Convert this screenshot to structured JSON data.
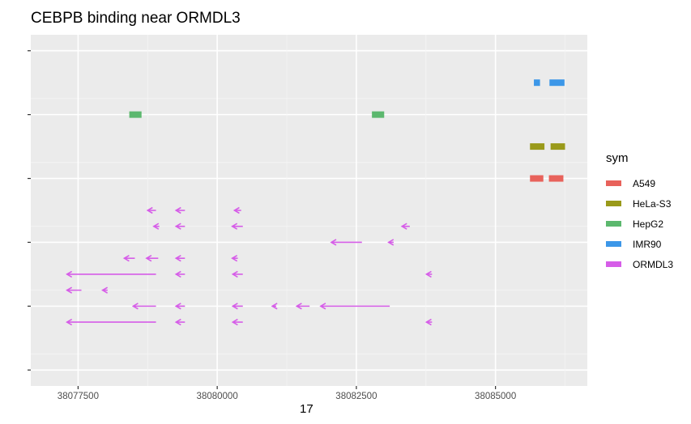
{
  "chart_data": {
    "type": "scatter",
    "title": "CEBPB binding near ORMDL3",
    "xlabel": "17",
    "ylabel": "",
    "x_ticks": [
      "38077500",
      "38080000",
      "38082500",
      "38085000"
    ],
    "x_tick_values": [
      38077500,
      38080000,
      38082500,
      38085000
    ],
    "xlim": [
      38076650,
      38086650
    ],
    "ylim": [
      0.5,
      11.5
    ],
    "grid": true,
    "legend_title": "sym",
    "legend_position": "right",
    "series": [
      {
        "name": "A549",
        "color": "#E8625B",
        "segments": [
          {
            "start": 38085620,
            "end": 38085860,
            "row": 7
          },
          {
            "start": 38085960,
            "end": 38086220,
            "row": 7
          }
        ]
      },
      {
        "name": "HeLa-S3",
        "color": "#9A9A1A",
        "segments": [
          {
            "start": 38085620,
            "end": 38085880,
            "row": 8
          },
          {
            "start": 38085990,
            "end": 38086250,
            "row": 8
          }
        ]
      },
      {
        "name": "HepG2",
        "color": "#5CB86E",
        "segments": [
          {
            "start": 38078420,
            "end": 38078640,
            "row": 9
          },
          {
            "start": 38082780,
            "end": 38083000,
            "row": 9
          }
        ]
      },
      {
        "name": "IMR90",
        "color": "#3C97E8",
        "segments": [
          {
            "start": 38085690,
            "end": 38085800,
            "row": 10
          },
          {
            "start": 38085970,
            "end": 38086240,
            "row": 10
          }
        ]
      },
      {
        "name": "ORMDL3",
        "color": "#D65DE8",
        "arrows": [
          {
            "start": 38078900,
            "end": 38078750,
            "row": 6
          },
          {
            "start": 38079420,
            "end": 38079260,
            "row": 6
          },
          {
            "start": 38080430,
            "end": 38080310,
            "row": 6
          },
          {
            "start": 38078960,
            "end": 38078860,
            "row": 5.5
          },
          {
            "start": 38079420,
            "end": 38079260,
            "row": 5.5
          },
          {
            "start": 38080460,
            "end": 38080270,
            "row": 5.5
          },
          {
            "start": 38083460,
            "end": 38083320,
            "row": 5.5
          },
          {
            "start": 38082600,
            "end": 38082050,
            "row": 5
          },
          {
            "start": 38083170,
            "end": 38083080,
            "row": 5
          },
          {
            "start": 38078520,
            "end": 38078330,
            "row": 4.5
          },
          {
            "start": 38078940,
            "end": 38078730,
            "row": 4.5
          },
          {
            "start": 38079420,
            "end": 38079260,
            "row": 4.5
          },
          {
            "start": 38080370,
            "end": 38080270,
            "row": 4.5
          },
          {
            "start": 38078900,
            "end": 38077300,
            "row": 4
          },
          {
            "start": 38079420,
            "end": 38079260,
            "row": 4
          },
          {
            "start": 38080460,
            "end": 38080280,
            "row": 4
          },
          {
            "start": 38083860,
            "end": 38083760,
            "row": 4
          },
          {
            "start": 38077560,
            "end": 38077300,
            "row": 3.5
          },
          {
            "start": 38078030,
            "end": 38077940,
            "row": 3.5
          },
          {
            "start": 38078900,
            "end": 38078490,
            "row": 3
          },
          {
            "start": 38079420,
            "end": 38079260,
            "row": 3
          },
          {
            "start": 38080460,
            "end": 38080280,
            "row": 3
          },
          {
            "start": 38081060,
            "end": 38080990,
            "row": 3
          },
          {
            "start": 38081660,
            "end": 38081430,
            "row": 3
          },
          {
            "start": 38083100,
            "end": 38081860,
            "row": 3
          },
          {
            "start": 38078900,
            "end": 38077300,
            "row": 2.5
          },
          {
            "start": 38079420,
            "end": 38079260,
            "row": 2.5
          },
          {
            "start": 38080460,
            "end": 38080280,
            "row": 2.5
          },
          {
            "start": 38083860,
            "end": 38083760,
            "row": 2.5
          }
        ]
      }
    ]
  }
}
